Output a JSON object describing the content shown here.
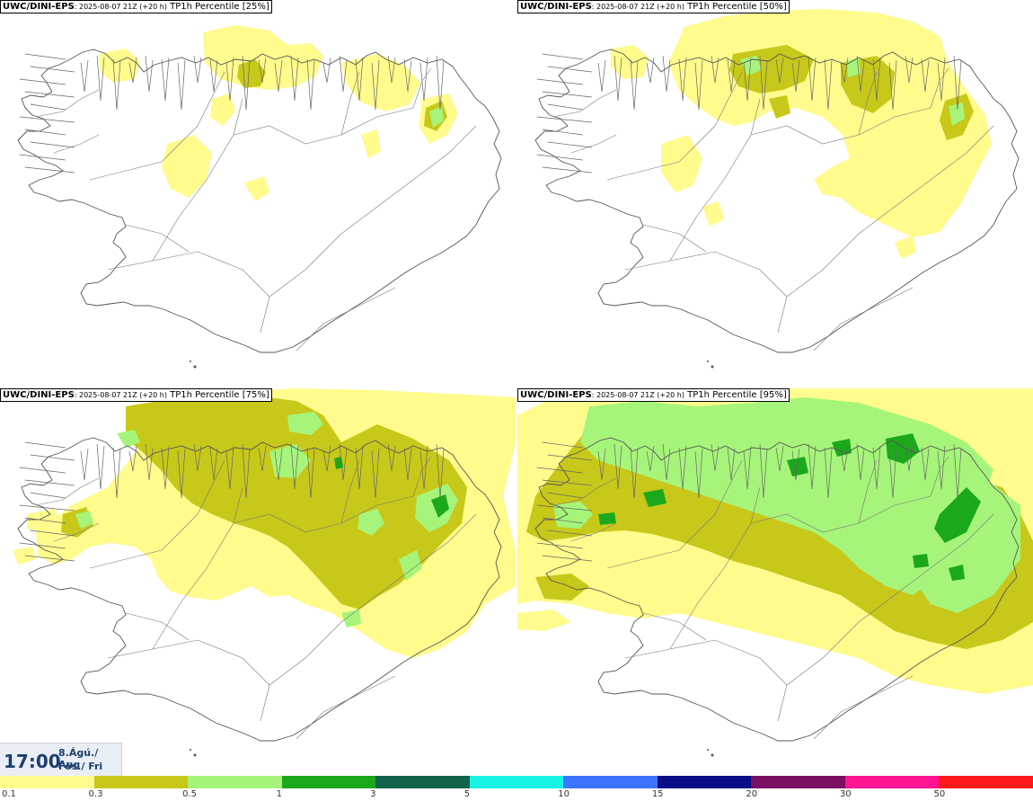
{
  "panels": [
    {
      "source": "UWC/DINI-EPS",
      "meta": ": 2025-08-07 21Z (+20 h)",
      "product": " TP1h Percentile [25%]",
      "level": 1
    },
    {
      "source": "UWC/DINI-EPS",
      "meta": ": 2025-08-07 21Z (+20 h)",
      "product": " TP1h Percentile [50%]",
      "level": 2
    },
    {
      "source": "UWC/DINI-EPS",
      "meta": ": 2025-08-07 21Z (+20 h)",
      "product": " TP1h Percentile [75%]",
      "level": 3
    },
    {
      "source": "UWC/DINI-EPS",
      "meta": ": 2025-08-07 21Z (+20 h)",
      "product": " TP1h Percentile [95%]",
      "level": 4
    }
  ],
  "valid_time": {
    "time": "17:00",
    "date_line1": "8.Ágú./ Aug",
    "date_line2": "Fös./ Fri"
  },
  "legend": {
    "colors": [
      "#fffb8c",
      "#c7c81a",
      "#a6f57a",
      "#1ca81c",
      "#11624a",
      "#17f3e4",
      "#3c74ff",
      "#0b0b88",
      "#7b0f64",
      "#ff1493",
      "#ff1a1a"
    ],
    "ticks": [
      "0.1",
      "0.3",
      "0.5",
      "1",
      "3",
      "5",
      "10",
      "15",
      "20",
      "30",
      "50"
    ]
  },
  "map_colors": {
    "coast": "#555555",
    "land": "#ffffff",
    "sea": "#ffffff"
  }
}
